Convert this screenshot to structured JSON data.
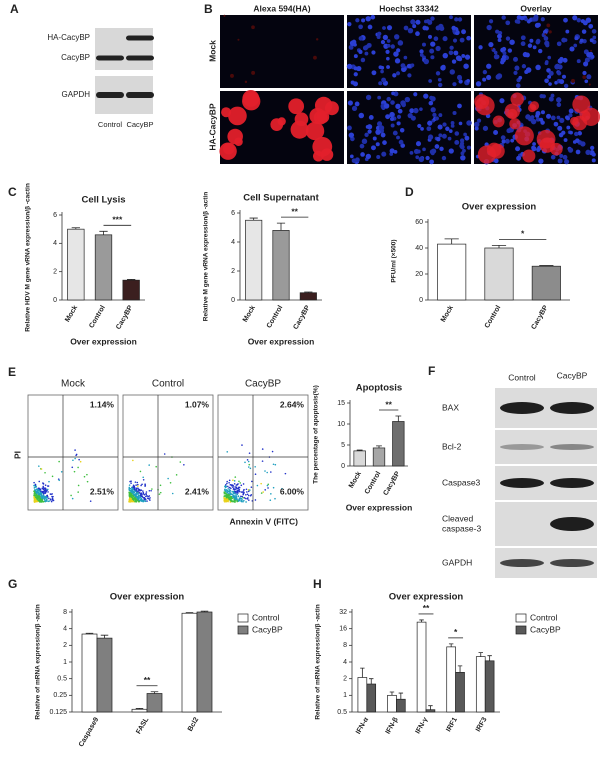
{
  "panel_labels": [
    "A",
    "B",
    "C",
    "D",
    "E",
    "F",
    "G",
    "H"
  ],
  "blot_A": {
    "rows": [
      "HA-CacyBP",
      "CacyBP",
      "GAPDH"
    ],
    "lanes": [
      "Control",
      "CacyBP"
    ]
  },
  "microscopy_B": {
    "columns": [
      "Alexa 594(HA)",
      "Hoechst 33342",
      "Overlay"
    ],
    "rows": [
      "Mock",
      "HA-CacyBP"
    ]
  },
  "flow_E": {
    "y_label": "PI",
    "x_label": "Annexin V (FITC)",
    "plots": [
      {
        "name": "Mock",
        "upper_right": "1.14%",
        "lower_right": "2.51%"
      },
      {
        "name": "Control",
        "upper_right": "1.07%",
        "lower_right": "2.41%"
      },
      {
        "name": "CacyBP",
        "upper_right": "2.64%",
        "lower_right": "6.00%"
      }
    ]
  },
  "blot_F": {
    "lanes": [
      "Control",
      "CacyBP"
    ],
    "rows": [
      {
        "lines": [
          "BAX"
        ]
      },
      {
        "lines": [
          "Bcl-2"
        ]
      },
      {
        "lines": [
          "Caspase3"
        ]
      },
      {
        "lines": [
          "Cleaved",
          "caspase-3"
        ]
      },
      {
        "lines": [
          "GAPDH"
        ]
      }
    ]
  },
  "chart_data": [
    {
      "type": "bar",
      "title": "Cell Lysis",
      "ylabel": "Relative HDV M gene vRNA expression/β -cactin",
      "xlabel": "Over expression",
      "categories": [
        "Mock",
        "Control",
        "CacyBP"
      ],
      "values": [
        5.0,
        4.6,
        1.4
      ],
      "errors": [
        0.1,
        0.25,
        0.05
      ],
      "colors": [
        "#e6e6e6",
        "#9a9a9a",
        "#3b1f1f"
      ],
      "ylim": [
        0,
        6
      ],
      "yticks": [
        0,
        2,
        4,
        6
      ],
      "annotations": [
        {
          "text": "***",
          "from": "Control",
          "to": "CacyBP"
        }
      ]
    },
    {
      "type": "bar",
      "title": "Cell Supernatant",
      "ylabel": "Relative M gene vRNA expression/β -actin",
      "xlabel": "Over expression",
      "categories": [
        "Mock",
        "Control",
        "CacyBP"
      ],
      "values": [
        5.5,
        4.8,
        0.5
      ],
      "errors": [
        0.15,
        0.5,
        0.05
      ],
      "colors": [
        "#e6e6e6",
        "#9a9a9a",
        "#3b1f1f"
      ],
      "ylim": [
        0,
        6
      ],
      "yticks": [
        0,
        2,
        4,
        6
      ],
      "annotations": [
        {
          "text": "**",
          "from": "Control",
          "to": "CacyBP"
        }
      ]
    },
    {
      "type": "bar",
      "title": "Over expression",
      "ylabel": "PFU/ml (×500)",
      "categories": [
        "Mock",
        "Control",
        "CacyBP"
      ],
      "values": [
        43,
        40,
        26
      ],
      "errors": [
        4,
        2,
        0.5
      ],
      "colors": [
        "#ffffff",
        "#d9d9d9",
        "#8c8c8c"
      ],
      "ylim": [
        0,
        60
      ],
      "yticks": [
        0,
        20,
        40,
        60
      ],
      "annotations": [
        {
          "text": "*",
          "from": "Control",
          "to": "CacyBP"
        }
      ]
    },
    {
      "type": "bar",
      "title": "Apoptosis",
      "ylabel": "The percentage of apoptosis(%)",
      "xlabel": "Over expression",
      "categories": [
        "Mock",
        "Control",
        "CacyBP"
      ],
      "values": [
        3.6,
        4.3,
        10.6
      ],
      "errors": [
        0.2,
        0.5,
        1.3
      ],
      "colors": [
        "#d9d9d9",
        "#a6a6a6",
        "#6e6e6e"
      ],
      "ylim": [
        0,
        15
      ],
      "yticks": [
        0,
        5,
        10,
        15
      ],
      "annotations": [
        {
          "text": "**",
          "from": "Control",
          "to": "CacyBP"
        }
      ]
    },
    {
      "type": "bar",
      "title": "Over expression",
      "ylabel": "Relative of mRNA expression/β -actin",
      "yscale": "log",
      "categories": [
        "Caspase9",
        "FASL",
        "Bcl2"
      ],
      "series": [
        {
          "name": "Control",
          "color": "#ffffff",
          "values": [
            3.2,
            0.14,
            7.6
          ],
          "errors": [
            0.1,
            0.005,
            0.2
          ]
        },
        {
          "name": "CacyBP",
          "color": "#7f7f7f",
          "values": [
            2.7,
            0.27,
            8.0
          ],
          "errors": [
            0.35,
            0.02,
            0.3
          ]
        }
      ],
      "ylim": [
        0.125,
        8
      ],
      "yticks": [
        0.125,
        0.25,
        0.5,
        1,
        2,
        4,
        8
      ],
      "annotations": [
        {
          "text": "**",
          "category": "FASL"
        }
      ]
    },
    {
      "type": "bar",
      "title": "Over expression",
      "ylabel": "Relative of mRNA expression/β -actin",
      "yscale": "log",
      "categories": [
        "IFN-α",
        "IFN-β",
        "IFN-γ",
        "IRF1",
        "IRF3"
      ],
      "series": [
        {
          "name": "Control",
          "color": "#ffffff",
          "values": [
            2.1,
            1.0,
            21,
            7.5,
            5.0
          ],
          "errors": [
            1.0,
            0.15,
            2.0,
            1.0,
            0.9
          ]
        },
        {
          "name": "CacyBP",
          "color": "#595959",
          "values": [
            1.6,
            0.85,
            0.55,
            2.6,
            4.2
          ],
          "errors": [
            0.4,
            0.25,
            0.1,
            0.8,
            1.0
          ]
        }
      ],
      "ylim": [
        0.5,
        32
      ],
      "yticks": [
        0.5,
        1,
        2,
        4,
        8,
        16,
        32
      ],
      "annotations": [
        {
          "text": "**",
          "category": "IFN-γ"
        },
        {
          "text": "*",
          "category": "IRF1"
        }
      ]
    }
  ]
}
